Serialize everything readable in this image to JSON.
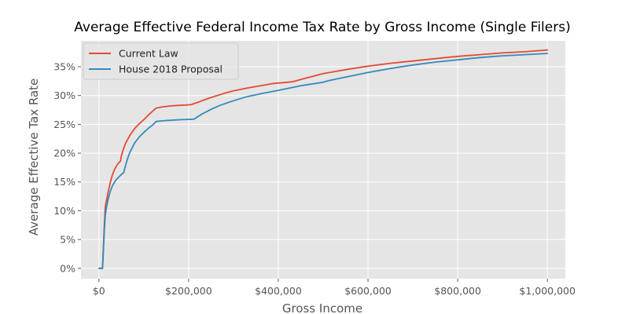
{
  "chart_data": {
    "type": "line",
    "title": "Average Effective Federal Income Tax Rate by Gross Income (Single Filers)",
    "xlabel": "Gross Income",
    "ylabel": "Average Effective Tax Rate",
    "xlim": [
      -40000,
      1040000
    ],
    "ylim": [
      -1.8,
      39.5
    ],
    "x_ticks": [
      0,
      200000,
      400000,
      600000,
      800000,
      1000000
    ],
    "x_tick_labels": [
      "$0",
      "$200,000",
      "$400,000",
      "$600,000",
      "$800,000",
      "$1,000,000"
    ],
    "y_ticks": [
      0,
      5,
      10,
      15,
      20,
      25,
      30,
      35
    ],
    "y_tick_labels": [
      "0%",
      "5%",
      "10%",
      "15%",
      "20%",
      "25%",
      "30%",
      "35%"
    ],
    "grid": true,
    "legend_position": "top-left",
    "background_color": "#e5e5e5",
    "series": [
      {
        "name": "Current Law",
        "color": "#e24a33",
        "x": [
          0,
          8000,
          10000,
          12000,
          14000,
          16000,
          18000,
          20000,
          25000,
          30000,
          35000,
          40000,
          45000,
          48000,
          50000,
          55000,
          60000,
          70000,
          80000,
          90000,
          100000,
          110000,
          120000,
          127000,
          140000,
          160000,
          180000,
          205000,
          220000,
          240000,
          260000,
          280000,
          300000,
          330000,
          360000,
          390000,
          420000,
          432000,
          460000,
          500000,
          550000,
          600000,
          650000,
          700000,
          750000,
          800000,
          850000,
          900000,
          950000,
          1000000
        ],
        "y": [
          0,
          0,
          3.5,
          7.5,
          10.5,
          11.5,
          12.2,
          13.0,
          14.8,
          16.2,
          17.2,
          17.9,
          18.4,
          18.6,
          19.5,
          20.8,
          21.8,
          23.2,
          24.3,
          25.1,
          25.8,
          26.6,
          27.3,
          27.8,
          28.0,
          28.2,
          28.3,
          28.4,
          28.8,
          29.4,
          29.9,
          30.4,
          30.8,
          31.3,
          31.7,
          32.1,
          32.3,
          32.4,
          33.0,
          33.8,
          34.5,
          35.1,
          35.6,
          36.0,
          36.4,
          36.8,
          37.1,
          37.4,
          37.6,
          37.9
        ]
      },
      {
        "name": "House 2018 Proposal",
        "color": "#348abd",
        "x": [
          0,
          8000,
          10000,
          12000,
          14000,
          16000,
          18000,
          20000,
          25000,
          30000,
          35000,
          40000,
          45000,
          50000,
          55000,
          60000,
          65000,
          70000,
          80000,
          90000,
          100000,
          110000,
          120000,
          128000,
          140000,
          160000,
          180000,
          200000,
          212000,
          230000,
          250000,
          270000,
          300000,
          330000,
          360000,
          400000,
          450000,
          500000,
          513000,
          550000,
          600000,
          650000,
          700000,
          750000,
          800000,
          850000,
          900000,
          950000,
          1000000
        ],
        "y": [
          0,
          0,
          3.0,
          6.5,
          9.0,
          10.2,
          11.0,
          11.8,
          13.3,
          14.3,
          15.0,
          15.5,
          15.9,
          16.3,
          16.6,
          18.0,
          19.3,
          20.3,
          21.8,
          22.8,
          23.6,
          24.3,
          24.9,
          25.5,
          25.6,
          25.7,
          25.8,
          25.85,
          25.9,
          26.8,
          27.6,
          28.3,
          29.1,
          29.8,
          30.3,
          30.9,
          31.7,
          32.3,
          32.6,
          33.2,
          34.0,
          34.7,
          35.3,
          35.8,
          36.2,
          36.6,
          36.9,
          37.1,
          37.3
        ]
      }
    ]
  }
}
